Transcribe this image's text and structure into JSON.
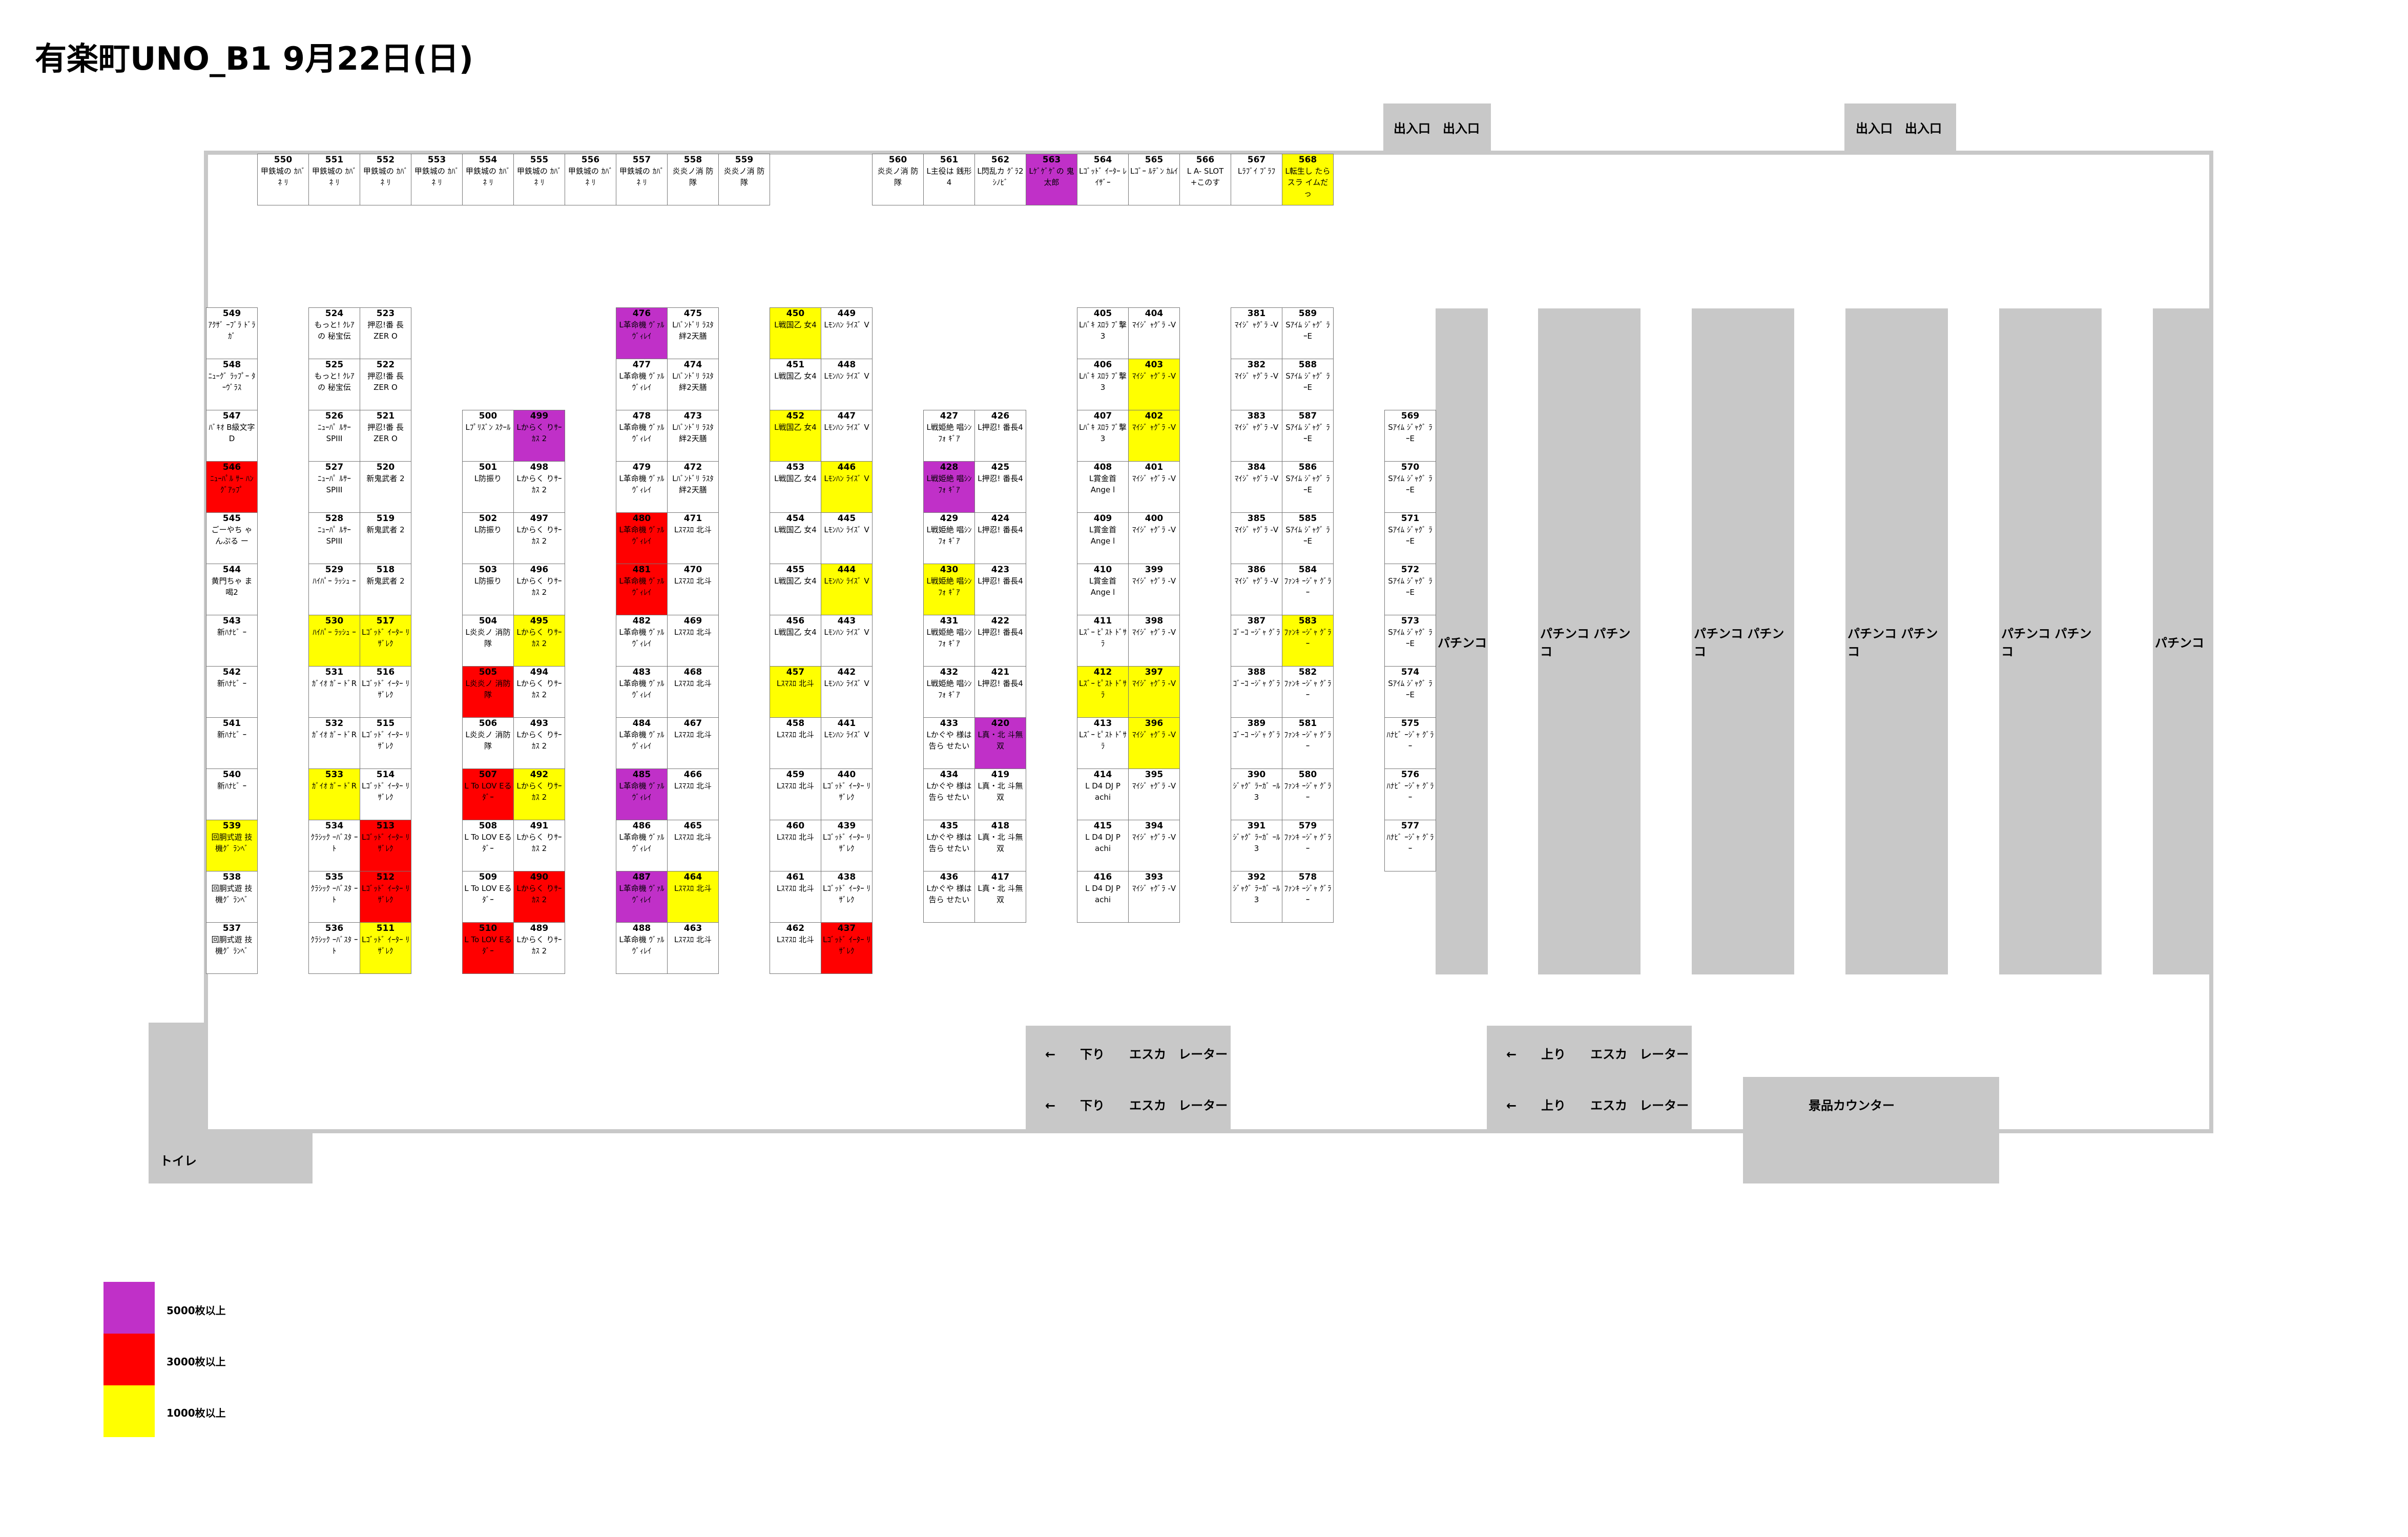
{
  "title": "有楽町UNO_B1 9月22日(日)",
  "legend": [
    {
      "key": "c5",
      "color": "#c030c8",
      "label": "5000枚以上"
    },
    {
      "key": "c3",
      "color": "#ff0000",
      "label": "3000枚以上"
    },
    {
      "key": "c1",
      "color": "#ffff00",
      "label": "1000枚以上"
    }
  ],
  "entrances": [
    "出入口　出入口",
    "出入口　出入口"
  ],
  "pachinko": [
    "パチンコ",
    "パチンコ パチンコ",
    "パチンコ パチンコ",
    "パチンコ パチンコ",
    "パチンコ パチンコ",
    "パチンコ"
  ],
  "escalators": [
    "←　　下り　　エスカ　レーター",
    "←　　下り　　エスカ　レーター",
    "←　　上り　　エスカ　レーター",
    "←　　上り　　エスカ　レーター"
  ],
  "prize_counter": "景品カウンター",
  "toilet": "トイレ",
  "columns": [
    {
      "cells": [
        {
          "n": "550",
          "name": "甲鉄城の ｶﾊﾞﾈ ﾘ"
        },
        {
          "n": "551",
          "name": "甲鉄城の ｶﾊﾞﾈ ﾘ"
        },
        {
          "n": "552",
          "name": "甲鉄城の ｶﾊﾞﾈ ﾘ"
        },
        {
          "n": "553",
          "name": "甲鉄城の ｶﾊﾞﾈ ﾘ"
        },
        {
          "n": "554",
          "name": "甲鉄城の ｶﾊﾞﾈ ﾘ"
        },
        {
          "n": "555",
          "name": "甲鉄城の ｶﾊﾞﾈ ﾘ"
        },
        {
          "n": "556",
          "name": "甲鉄城の ｶﾊﾞﾈ ﾘ"
        },
        {
          "n": "557",
          "name": "甲鉄城の ｶﾊﾞﾈ ﾘ"
        },
        {
          "n": "558",
          "name": "炎炎ノ消 防隊"
        },
        {
          "n": "559",
          "name": "炎炎ノ消 防隊"
        }
      ]
    },
    {
      "cells": [
        {
          "n": "560",
          "name": "炎炎ノ消 防隊"
        },
        {
          "n": "561",
          "name": "L主役は 銭形4"
        },
        {
          "n": "562",
          "name": "L閃乱カ ｸﾞﾗ2 ｼﾉﾋﾞ"
        },
        {
          "n": "563",
          "name": "Lｹﾞｹﾞｹﾞの 鬼太郎",
          "c": "c5"
        },
        {
          "n": "564",
          "name": "Lｺﾞｯﾄﾞ ｲｰﾀｰ ﾚｲｻﾞｰ"
        },
        {
          "n": "565",
          "name": "Lｺﾞｰ ﾙﾃﾞﾝ ｶﾑｲ"
        },
        {
          "n": "566",
          "name": "L A- SLOT +このす"
        },
        {
          "n": "567",
          "name": "Lﾗﾌﾞｲ ﾌﾞﾗﾌ"
        },
        {
          "n": "568",
          "name": "L転生し たらスラ イムだっ",
          "c": "c1"
        }
      ]
    },
    {
      "cells": [
        {
          "n": "549",
          "name": "ｱｸｻﾞ ｰﾌﾞﾗ ﾄﾞﾗｶﾞ"
        },
        {
          "n": "548",
          "name": "ﾆｭｰｸﾞ ﾗｯﾌﾟｰ ﾀｰｳﾞﾗｽ"
        },
        {
          "n": "547",
          "name": "ﾊﾞｷｵ B級文字 D"
        },
        {
          "n": "546",
          "name": "ﾆｭｰﾊﾟﾙ ｻｰ ﾊﾝｸﾞｱｯﾌﾟ",
          "c": "c3"
        },
        {
          "n": "545",
          "name": "ごーやち ゃんぷる ー"
        },
        {
          "n": "544",
          "name": "黄門ちゃ ま喝2"
        },
        {
          "n": "543",
          "name": "新ﾊﾅﾋﾞ ｰ"
        },
        {
          "n": "542",
          "name": "新ﾊﾅﾋﾞ ｰ"
        },
        {
          "n": "541",
          "name": "新ﾊﾅﾋﾞ ｰ"
        },
        {
          "n": "540",
          "name": "新ﾊﾅﾋﾞ ｰ"
        },
        {
          "n": "539",
          "name": "回胴式遊 技機ｸﾞ ﾗﾝﾍﾞ",
          "c": "c1"
        },
        {
          "n": "538",
          "name": "回胴式遊 技機ｸﾞ ﾗﾝﾍﾞ"
        },
        {
          "n": "537",
          "name": "回胴式遊 技機ｸﾞ ﾗﾝﾍﾞ"
        }
      ]
    },
    {
      "cells": [
        {
          "n": "524",
          "name": "もっと! ｸﾚｱの 秘宝伝"
        },
        {
          "n": "525",
          "name": "もっと! ｸﾚｱの 秘宝伝"
        },
        {
          "n": "526",
          "name": "ﾆｭｰﾊﾟ ﾙｻｰ SPIII"
        },
        {
          "n": "527",
          "name": "ﾆｭｰﾊﾟ ﾙｻｰ SPIII"
        },
        {
          "n": "528",
          "name": "ﾆｭｰﾊﾟ ﾙｻｰ SPIII"
        },
        {
          "n": "529",
          "name": "ﾊｲﾊﾟｰ ﾗｯｼｭ ｰ"
        },
        {
          "n": "530",
          "name": "ﾊｲﾊﾟｰ ﾗｯｼｭ ｰ",
          "c": "c1"
        },
        {
          "n": "531",
          "name": "ｶﾞｲｵ ｶﾞｰ ﾄﾞR"
        },
        {
          "n": "532",
          "name": "ｶﾞｲｵ ｶﾞｰ ﾄﾞR"
        },
        {
          "n": "533",
          "name": "ｶﾞｲｵ ｶﾞｰ ﾄﾞR",
          "c": "c1"
        },
        {
          "n": "534",
          "name": "ｸﾗｼｯｸ ｰﾊﾞｽﾀ ｰﾄ"
        },
        {
          "n": "535",
          "name": "ｸﾗｼｯｸ ｰﾊﾞｽﾀ ｰﾄ"
        },
        {
          "n": "536",
          "name": "ｸﾗｼｯｸ ｰﾊﾞｽﾀ ｰﾄ"
        }
      ]
    },
    {
      "cells": [
        {
          "n": "523",
          "name": "押忍!番 長ZER O"
        },
        {
          "n": "522",
          "name": "押忍!番 長ZER O"
        },
        {
          "n": "521",
          "name": "押忍!番 長ZER O"
        },
        {
          "n": "520",
          "name": "新鬼武者 2"
        },
        {
          "n": "519",
          "name": "新鬼武者 2"
        },
        {
          "n": "518",
          "name": "新鬼武者 2"
        },
        {
          "n": "517",
          "name": "Lｺﾞｯﾄﾞ ｲｰﾀｰ ﾘｻﾞﾚｸ",
          "c": "c1"
        },
        {
          "n": "516",
          "name": "Lｺﾞｯﾄﾞ ｲｰﾀｰ ﾘｻﾞﾚｸ"
        },
        {
          "n": "515",
          "name": "Lｺﾞｯﾄﾞ ｲｰﾀｰ ﾘｻﾞﾚｸ"
        },
        {
          "n": "514",
          "name": "Lｺﾞｯﾄﾞ ｲｰﾀｰ ﾘｻﾞﾚｸ"
        },
        {
          "n": "513",
          "name": "Lｺﾞｯﾄﾞ ｲｰﾀｰ ﾘｻﾞﾚｸ",
          "c": "c3"
        },
        {
          "n": "512",
          "name": "Lｺﾞｯﾄﾞ ｲｰﾀｰ ﾘｻﾞﾚｸ",
          "c": "c3"
        },
        {
          "n": "511",
          "name": "Lｺﾞｯﾄﾞ ｲｰﾀｰ ﾘｻﾞﾚｸ",
          "c": "c1"
        }
      ]
    },
    {
      "cells": [
        {
          "n": "500",
          "name": "Lﾌﾟﾘｽﾞﾝ ｽｸｰﾙ"
        },
        {
          "n": "501",
          "name": "L防振り"
        },
        {
          "n": "502",
          "name": "L防振り"
        },
        {
          "n": "503",
          "name": "L防振り"
        },
        {
          "n": "504",
          "name": "L炎炎ノ 消防隊"
        },
        {
          "n": "505",
          "name": "L炎炎ノ 消防隊",
          "c": "c3"
        },
        {
          "n": "506",
          "name": "L炎炎ノ 消防隊"
        },
        {
          "n": "507",
          "name": "L To LOV Eるﾀﾞｰ",
          "c": "c3"
        },
        {
          "n": "508",
          "name": "L To LOV Eるﾀﾞｰ"
        },
        {
          "n": "509",
          "name": "L To LOV Eるﾀﾞｰ"
        },
        {
          "n": "510",
          "name": "L To LOV Eるﾀﾞｰ",
          "c": "c3"
        }
      ]
    },
    {
      "cells": [
        {
          "n": "499",
          "name": "Lからく りｻｰｶｽ 2",
          "c": "c5"
        },
        {
          "n": "498",
          "name": "Lからく りｻｰｶｽ 2"
        },
        {
          "n": "497",
          "name": "Lからく りｻｰｶｽ 2"
        },
        {
          "n": "496",
          "name": "Lからく りｻｰｶｽ 2"
        },
        {
          "n": "495",
          "name": "Lからく りｻｰｶｽ 2",
          "c": "c1"
        },
        {
          "n": "494",
          "name": "Lからく りｻｰｶｽ 2"
        },
        {
          "n": "493",
          "name": "Lからく りｻｰｶｽ 2"
        },
        {
          "n": "492",
          "name": "Lからく りｻｰｶｽ 2",
          "c": "c1"
        },
        {
          "n": "491",
          "name": "Lからく りｻｰｶｽ 2"
        },
        {
          "n": "490",
          "name": "Lからく りｻｰｶｽ 2",
          "c": "c3"
        },
        {
          "n": "489",
          "name": "Lからく りｻｰｶｽ 2"
        }
      ]
    },
    {
      "cells": [
        {
          "n": "476",
          "name": "L革命機 ｳﾞｧﾙ ｳﾞｨﾚｲ",
          "c": "c5"
        },
        {
          "n": "477",
          "name": "L革命機 ｳﾞｧﾙ ｳﾞｨﾚｲ"
        },
        {
          "n": "478",
          "name": "L革命機 ｳﾞｧﾙ ｳﾞｨﾚｲ"
        },
        {
          "n": "479",
          "name": "L革命機 ｳﾞｧﾙ ｳﾞｨﾚｲ"
        },
        {
          "n": "480",
          "name": "L革命機 ｳﾞｧﾙ ｳﾞｨﾚｲ",
          "c": "c3"
        },
        {
          "n": "481",
          "name": "L革命機 ｳﾞｧﾙ ｳﾞｨﾚｲ",
          "c": "c3"
        },
        {
          "n": "482",
          "name": "L革命機 ｳﾞｧﾙ ｳﾞｨﾚｲ"
        },
        {
          "n": "483",
          "name": "L革命機 ｳﾞｧﾙ ｳﾞｨﾚｲ"
        },
        {
          "n": "484",
          "name": "L革命機 ｳﾞｧﾙ ｳﾞｨﾚｲ"
        },
        {
          "n": "485",
          "name": "L革命機 ｳﾞｧﾙ ｳﾞｨﾚｲ",
          "c": "c5"
        },
        {
          "n": "486",
          "name": "L革命機 ｳﾞｧﾙ ｳﾞｨﾚｲ"
        },
        {
          "n": "487",
          "name": "L革命機 ｳﾞｧﾙ ｳﾞｨﾚｲ",
          "c": "c5"
        },
        {
          "n": "488",
          "name": "L革命機 ｳﾞｧﾙ ｳﾞｨﾚｲ"
        }
      ]
    },
    {
      "cells": [
        {
          "n": "475",
          "name": "Lﾊﾞﾝﾄﾞﾘ ﾗｽﾀ 絆2天膳"
        },
        {
          "n": "474",
          "name": "Lﾊﾞﾝﾄﾞﾘ ﾗｽﾀ 絆2天膳"
        },
        {
          "n": "473",
          "name": "Lﾊﾞﾝﾄﾞﾘ ﾗｽﾀ 絆2天膳"
        },
        {
          "n": "472",
          "name": "Lﾊﾞﾝﾄﾞﾘ ﾗｽﾀ 絆2天膳"
        },
        {
          "n": "471",
          "name": "Lｽﾏｽﾛ 北斗"
        },
        {
          "n": "470",
          "name": "Lｽﾏｽﾛ 北斗"
        },
        {
          "n": "469",
          "name": "Lｽﾏｽﾛ 北斗"
        },
        {
          "n": "468",
          "name": "Lｽﾏｽﾛ 北斗"
        },
        {
          "n": "467",
          "name": "Lｽﾏｽﾛ 北斗"
        },
        {
          "n": "466",
          "name": "Lｽﾏｽﾛ 北斗"
        },
        {
          "n": "465",
          "name": "Lｽﾏｽﾛ 北斗"
        },
        {
          "n": "464",
          "name": "Lｽﾏｽﾛ 北斗",
          "c": "c1"
        },
        {
          "n": "463",
          "name": "Lｽﾏｽﾛ 北斗"
        }
      ]
    },
    {
      "cells": [
        {
          "n": "450",
          "name": "L戦国乙 女4",
          "c": "c1"
        },
        {
          "n": "451",
          "name": "L戦国乙 女4"
        },
        {
          "n": "452",
          "name": "L戦国乙 女4",
          "c": "c1"
        },
        {
          "n": "453",
          "name": "L戦国乙 女4"
        },
        {
          "n": "454",
          "name": "L戦国乙 女4"
        },
        {
          "n": "455",
          "name": "L戦国乙 女4"
        },
        {
          "n": "456",
          "name": "L戦国乙 女4"
        },
        {
          "n": "457",
          "name": "Lｽﾏｽﾛ 北斗",
          "c": "c1"
        },
        {
          "n": "458",
          "name": "Lｽﾏｽﾛ 北斗"
        },
        {
          "n": "459",
          "name": "Lｽﾏｽﾛ 北斗"
        },
        {
          "n": "460",
          "name": "Lｽﾏｽﾛ 北斗"
        },
        {
          "n": "461",
          "name": "Lｽﾏｽﾛ 北斗"
        },
        {
          "n": "462",
          "name": "Lｽﾏｽﾛ 北斗"
        }
      ]
    },
    {
      "cells": [
        {
          "n": "449",
          "name": "Lﾓﾝﾊﾝ ﾗｲｽﾞ V"
        },
        {
          "n": "448",
          "name": "Lﾓﾝﾊﾝ ﾗｲｽﾞ V"
        },
        {
          "n": "447",
          "name": "Lﾓﾝﾊﾝ ﾗｲｽﾞ V"
        },
        {
          "n": "446",
          "name": "Lﾓﾝﾊﾝ ﾗｲｽﾞ V",
          "c": "c1"
        },
        {
          "n": "445",
          "name": "Lﾓﾝﾊﾝ ﾗｲｽﾞ V"
        },
        {
          "n": "444",
          "name": "Lﾓﾝﾊﾝ ﾗｲｽﾞ V",
          "c": "c1"
        },
        {
          "n": "443",
          "name": "Lﾓﾝﾊﾝ ﾗｲｽﾞ V"
        },
        {
          "n": "442",
          "name": "Lﾓﾝﾊﾝ ﾗｲｽﾞ V"
        },
        {
          "n": "441",
          "name": "Lﾓﾝﾊﾝ ﾗｲｽﾞ V"
        },
        {
          "n": "440",
          "name": "Lｺﾞｯﾄﾞ ｲｰﾀｰ ﾘｻﾞﾚｸ"
        },
        {
          "n": "439",
          "name": "Lｺﾞｯﾄﾞ ｲｰﾀｰ ﾘｻﾞﾚｸ"
        },
        {
          "n": "438",
          "name": "Lｺﾞｯﾄﾞ ｲｰﾀｰ ﾘｻﾞﾚｸ"
        },
        {
          "n": "437",
          "name": "Lｺﾞｯﾄﾞ ｲｰﾀｰ ﾘｻﾞﾚｸ",
          "c": "c3"
        }
      ]
    },
    {
      "cells": [
        {
          "n": "427",
          "name": "L戦姫絶 唱ｼﾝﾌｫ ｷﾞｱ"
        },
        {
          "n": "428",
          "name": "L戦姫絶 唱ｼﾝﾌｫ ｷﾞｱ",
          "c": "c5"
        },
        {
          "n": "429",
          "name": "L戦姫絶 唱ｼﾝﾌｫ ｷﾞｱ"
        },
        {
          "n": "430",
          "name": "L戦姫絶 唱ｼﾝﾌｫ ｷﾞｱ",
          "c": "c1"
        },
        {
          "n": "431",
          "name": "L戦姫絶 唱ｼﾝﾌｫ ｷﾞｱ"
        },
        {
          "n": "432",
          "name": "L戦姫絶 唱ｼﾝﾌｫ ｷﾞｱ"
        },
        {
          "n": "433",
          "name": "Lかぐや 様は告ら せたい"
        },
        {
          "n": "434",
          "name": "Lかぐや 様は告ら せたい"
        },
        {
          "n": "435",
          "name": "Lかぐや 様は告ら せたい"
        },
        {
          "n": "436",
          "name": "Lかぐや 様は告ら せたい"
        }
      ]
    },
    {
      "cells": [
        {
          "n": "426",
          "name": "L押忍! 番長4"
        },
        {
          "n": "425",
          "name": "L押忍! 番長4"
        },
        {
          "n": "424",
          "name": "L押忍! 番長4"
        },
        {
          "n": "423",
          "name": "L押忍! 番長4"
        },
        {
          "n": "422",
          "name": "L押忍! 番長4"
        },
        {
          "n": "421",
          "name": "L押忍! 番長4"
        },
        {
          "n": "420",
          "name": "L真・北 斗無双",
          "c": "c5"
        },
        {
          "n": "419",
          "name": "L真・北 斗無双"
        },
        {
          "n": "418",
          "name": "L真・北 斗無双"
        },
        {
          "n": "417",
          "name": "L真・北 斗無双"
        }
      ]
    },
    {
      "cells": [
        {
          "n": "405",
          "name": "Lﾊﾞｷ ｽﾛﾗ ﾌﾞ撃3"
        },
        {
          "n": "406",
          "name": "Lﾊﾞｷ ｽﾛﾗ ﾌﾞ撃3"
        },
        {
          "n": "407",
          "name": "Lﾊﾞｷ ｽﾛﾗ ﾌﾞ撃3"
        },
        {
          "n": "408",
          "name": "L賞金首 Ange l"
        },
        {
          "n": "409",
          "name": "L賞金首 Ange l"
        },
        {
          "n": "410",
          "name": "L賞金首 Ange l"
        },
        {
          "n": "411",
          "name": "Lｽﾞｰ ﾋﾟｽﾄ ﾄﾞｻﾗ"
        },
        {
          "n": "412",
          "name": "Lｽﾞｰ ﾋﾟｽﾄ ﾄﾞｻﾗ",
          "c": "c1"
        },
        {
          "n": "413",
          "name": "Lｽﾞｰ ﾋﾟｽﾄ ﾄﾞｻﾗ"
        },
        {
          "n": "414",
          "name": "L D4 DJ P achi"
        },
        {
          "n": "415",
          "name": "L D4 DJ P achi"
        },
        {
          "n": "416",
          "name": "L D4 DJ P achi"
        }
      ]
    },
    {
      "cells": [
        {
          "n": "404",
          "name": "ﾏｲｼﾞ ｬｸﾞﾗ -V"
        },
        {
          "n": "403",
          "name": "ﾏｲｼﾞ ｬｸﾞﾗ -V",
          "c": "c1"
        },
        {
          "n": "402",
          "name": "ﾏｲｼﾞ ｬｸﾞﾗ -V",
          "c": "c1"
        },
        {
          "n": "401",
          "name": "ﾏｲｼﾞ ｬｸﾞﾗ -V"
        },
        {
          "n": "400",
          "name": "ﾏｲｼﾞ ｬｸﾞﾗ -V"
        },
        {
          "n": "399",
          "name": "ﾏｲｼﾞ ｬｸﾞﾗ -V"
        },
        {
          "n": "398",
          "name": "ﾏｲｼﾞ ｬｸﾞﾗ -V"
        },
        {
          "n": "397",
          "name": "ﾏｲｼﾞ ｬｸﾞﾗ -V",
          "c": "c1"
        },
        {
          "n": "396",
          "name": "ﾏｲｼﾞ ｬｸﾞﾗ -V",
          "c": "c1"
        },
        {
          "n": "395",
          "name": "ﾏｲｼﾞ ｬｸﾞﾗ -V"
        },
        {
          "n": "394",
          "name": "ﾏｲｼﾞ ｬｸﾞﾗ -V"
        },
        {
          "n": "393",
          "name": "ﾏｲｼﾞ ｬｸﾞﾗ -V"
        }
      ]
    },
    {
      "cells": [
        {
          "n": "381",
          "name": "ﾏｲｼﾞ ｬｸﾞﾗ -V"
        },
        {
          "n": "382",
          "name": "ﾏｲｼﾞ ｬｸﾞﾗ -V"
        },
        {
          "n": "383",
          "name": "ﾏｲｼﾞ ｬｸﾞﾗ -V"
        },
        {
          "n": "384",
          "name": "ﾏｲｼﾞ ｬｸﾞﾗ -V"
        },
        {
          "n": "385",
          "name": "ﾏｲｼﾞ ｬｸﾞﾗ -V"
        },
        {
          "n": "386",
          "name": "ﾏｲｼﾞ ｬｸﾞﾗ -V"
        },
        {
          "n": "387",
          "name": "ｺﾞｰｺ ｰｼﾞｬ ｸﾞﾗ"
        },
        {
          "n": "388",
          "name": "ｺﾞｰｺ ｰｼﾞｬ ｸﾞﾗ"
        },
        {
          "n": "389",
          "name": "ｺﾞｰｺ ｰｼﾞｬ ｸﾞﾗ"
        },
        {
          "n": "390",
          "name": "ｼﾞｬｸﾞ ﾗｰｶﾞ ｰﾙ3"
        },
        {
          "n": "391",
          "name": "ｼﾞｬｸﾞ ﾗｰｶﾞ ｰﾙ3"
        },
        {
          "n": "392",
          "name": "ｼﾞｬｸﾞ ﾗｰｶﾞ ｰﾙ3"
        }
      ]
    },
    {
      "cells": [
        {
          "n": "589",
          "name": "Sｱｲﾑ ｼﾞｬｸﾞ ﾗｰE"
        },
        {
          "n": "588",
          "name": "Sｱｲﾑ ｼﾞｬｸﾞ ﾗｰE"
        },
        {
          "n": "587",
          "name": "Sｱｲﾑ ｼﾞｬｸﾞ ﾗｰE"
        },
        {
          "n": "586",
          "name": "Sｱｲﾑ ｼﾞｬｸﾞ ﾗｰE"
        },
        {
          "n": "585",
          "name": "Sｱｲﾑ ｼﾞｬｸﾞ ﾗｰE"
        },
        {
          "n": "584",
          "name": "ﾌｧﾝｷ ｰｼﾞｬ ｸﾞﾗｰ"
        },
        {
          "n": "583",
          "name": "ﾌｧﾝｷ ｰｼﾞｬ ｸﾞﾗｰ",
          "c": "c1"
        },
        {
          "n": "582",
          "name": "ﾌｧﾝｷ ｰｼﾞｬ ｸﾞﾗｰ"
        },
        {
          "n": "581",
          "name": "ﾌｧﾝｷ ｰｼﾞｬ ｸﾞﾗｰ"
        },
        {
          "n": "580",
          "name": "ﾌｧﾝｷ ｰｼﾞｬ ｸﾞﾗｰ"
        },
        {
          "n": "579",
          "name": "ﾌｧﾝｷ ｰｼﾞｬ ｸﾞﾗｰ"
        },
        {
          "n": "578",
          "name": "ﾌｧﾝｷ ｰｼﾞｬ ｸﾞﾗｰ"
        }
      ]
    },
    {
      "cells": [
        {
          "n": "569",
          "name": "Sｱｲﾑ ｼﾞｬｸﾞ ﾗｰE"
        },
        {
          "n": "570",
          "name": "Sｱｲﾑ ｼﾞｬｸﾞ ﾗｰE"
        },
        {
          "n": "571",
          "name": "Sｱｲﾑ ｼﾞｬｸﾞ ﾗｰE"
        },
        {
          "n": "572",
          "name": "Sｱｲﾑ ｼﾞｬｸﾞ ﾗｰE"
        },
        {
          "n": "573",
          "name": "Sｱｲﾑ ｼﾞｬｸﾞ ﾗｰE"
        },
        {
          "n": "574",
          "name": "Sｱｲﾑ ｼﾞｬｸﾞ ﾗｰE"
        },
        {
          "n": "575",
          "name": "ﾊﾅﾋﾞ ｰｼﾞｬ ｸﾞﾗｰ"
        },
        {
          "n": "576",
          "name": "ﾊﾅﾋﾞ ｰｼﾞｬ ｸﾞﾗｰ"
        },
        {
          "n": "577",
          "name": "ﾊﾅﾋﾞ ｰｼﾞｬ ｸﾞﾗｰ"
        }
      ]
    }
  ]
}
